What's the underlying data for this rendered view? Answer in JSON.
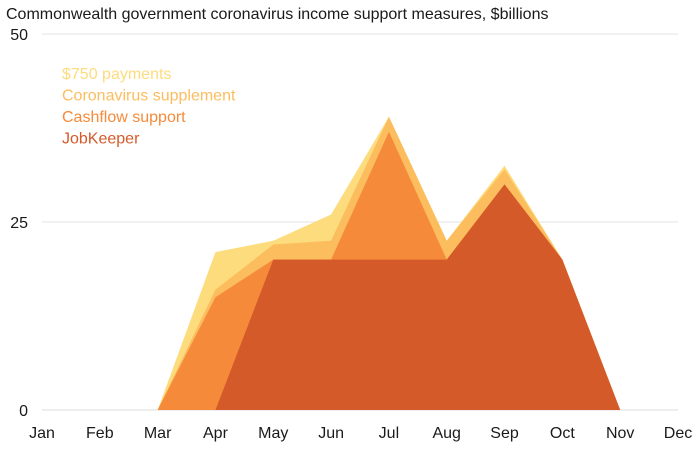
{
  "chart_data": {
    "type": "area",
    "stacked": true,
    "title": "Commonwealth government coronavirus income support measures, $billions",
    "xlabel": "",
    "ylabel": "",
    "categories": [
      "Jan",
      "Feb",
      "Mar",
      "Apr",
      "May",
      "Jun",
      "Jul",
      "Aug",
      "Sep",
      "Oct",
      "Nov",
      "Dec"
    ],
    "ylim": [
      0,
      50
    ],
    "yticks": [
      0,
      25,
      50
    ],
    "grid": true,
    "legend_position": "top-left",
    "series": [
      {
        "name": "JobKeeper",
        "color": "#d55a2a",
        "values": [
          0,
          0,
          0,
          0,
          20,
          20,
          20,
          20,
          30,
          20,
          0,
          0
        ]
      },
      {
        "name": "Cashflow support",
        "color": "#f58b3a",
        "values": [
          0,
          0,
          0,
          15,
          0,
          0,
          17,
          0,
          0,
          0,
          0,
          0
        ]
      },
      {
        "name": "Coronavirus supplement",
        "color": "#fbbd5e",
        "values": [
          0,
          0,
          0,
          1,
          2,
          2.5,
          2,
          2.5,
          2,
          0,
          0,
          0
        ]
      },
      {
        "name": "$750 payments",
        "color": "#fddc7e",
        "values": [
          0,
          0,
          0,
          5,
          0.5,
          3.5,
          0,
          0,
          0.5,
          0,
          0,
          0
        ]
      }
    ]
  }
}
